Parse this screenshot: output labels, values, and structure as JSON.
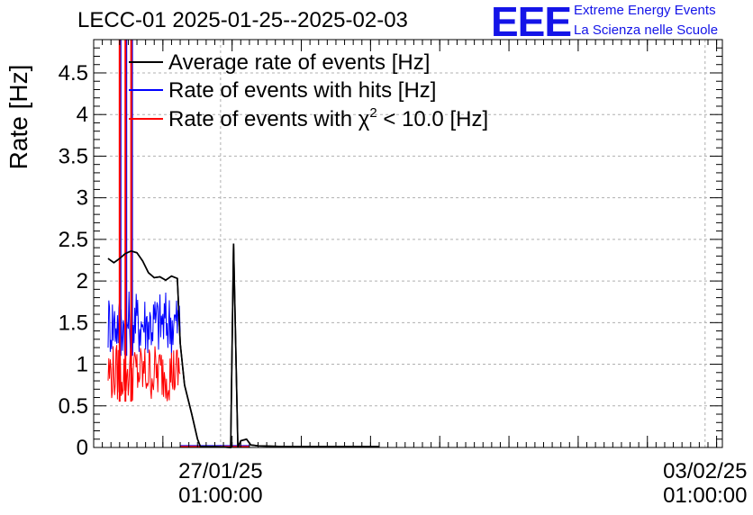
{
  "header": {
    "title": "LECC-01 2025-01-25--2025-02-03",
    "logo_text": "EEE",
    "logo_line1": "Extreme Energy Events",
    "logo_line2": "La Scienza nelle Scuole"
  },
  "colors": {
    "average": "#000000",
    "hits": "#0000ff",
    "chi2": "#ff0000",
    "logo": "#1414e8"
  },
  "chart_data": {
    "type": "line",
    "title": "LECC-01 2025-01-25--2025-02-03",
    "xlabel": "",
    "ylabel": "Rate [Hz]",
    "ylim": [
      0,
      4.9
    ],
    "xlim": [
      "2025-01-25 05:00",
      "2025-02-03 07:00"
    ],
    "y_ticks": [
      0,
      0.5,
      1,
      1.5,
      2,
      2.5,
      3,
      3.5,
      4,
      4.5
    ],
    "y_tick_labels": [
      "0",
      "0.5",
      "1",
      "1.5",
      "2",
      "2.5",
      "3",
      "3.5",
      "4",
      "4.5"
    ],
    "x_ticks": [
      {
        "x": "2025-01-27 01:00",
        "date": "27/01/25",
        "time": "01:00:00"
      },
      {
        "x": "2025-02-03 01:00",
        "date": "03/02/25",
        "time": "01:00:00"
      }
    ],
    "grid": true,
    "legend_position": "top-left",
    "series": [
      {
        "name": "Average rate of events [Hz]",
        "color": "#000000",
        "points": [
          [
            "2025-01-25 10:00",
            2.27
          ],
          [
            "2025-01-25 12:00",
            2.22
          ],
          [
            "2025-01-25 14:00",
            2.27
          ],
          [
            "2025-01-25 16:00",
            2.33
          ],
          [
            "2025-01-25 18:00",
            2.36
          ],
          [
            "2025-01-25 20:00",
            2.34
          ],
          [
            "2025-01-25 22:00",
            2.24
          ],
          [
            "2025-01-26 00:00",
            2.1
          ],
          [
            "2025-01-26 02:00",
            2.04
          ],
          [
            "2025-01-26 04:00",
            2.05
          ],
          [
            "2025-01-26 06:00",
            2.01
          ],
          [
            "2025-01-26 08:00",
            2.06
          ],
          [
            "2025-01-26 10:00",
            2.03
          ],
          [
            "2025-01-26 11:00",
            1.25
          ],
          [
            "2025-01-26 12:30",
            0.75
          ],
          [
            "2025-01-26 15:00",
            0.4
          ],
          [
            "2025-01-26 17:00",
            0.1
          ],
          [
            "2025-01-26 18:00",
            0.01
          ],
          [
            "2025-01-26 23:00",
            0.01
          ],
          [
            "2025-01-27 04:30",
            0.0
          ],
          [
            "2025-01-27 05:30",
            2.45
          ],
          [
            "2025-01-27 07:00",
            0.0
          ],
          [
            "2025-01-27 08:00",
            0.08
          ],
          [
            "2025-01-27 10:00",
            0.1
          ],
          [
            "2025-01-27 11:30",
            0.03
          ],
          [
            "2025-01-27 14:00",
            0.02
          ],
          [
            "2025-01-28 00:00",
            0.01
          ],
          [
            "2025-01-29 08:00",
            0.01
          ]
        ]
      },
      {
        "name": "Rate of events with hits [Hz]",
        "color": "#0000ff",
        "band": {
          "from": "2025-01-25 10:00",
          "to": "2025-01-26 11:00",
          "low": 1.1,
          "high": 1.9
        },
        "spikes": [
          "2025-01-25 14:00",
          "2025-01-25 16:00",
          "2025-01-25 18:00"
        ],
        "points": [
          [
            "2025-01-26 11:00",
            0.02
          ],
          [
            "2025-01-27 11:00",
            0.02
          ]
        ]
      },
      {
        "name": "Rate of events with χ² < 10.0 [Hz]",
        "color": "#ff0000",
        "band": {
          "from": "2025-01-25 10:00",
          "to": "2025-01-26 11:00",
          "low": 0.55,
          "high": 1.25
        },
        "spikes": [
          "2025-01-25 14:00",
          "2025-01-25 16:00",
          "2025-01-25 18:00"
        ],
        "points": [
          [
            "2025-01-26 11:00",
            0.01
          ],
          [
            "2025-01-27 11:00",
            0.01
          ]
        ]
      }
    ]
  }
}
